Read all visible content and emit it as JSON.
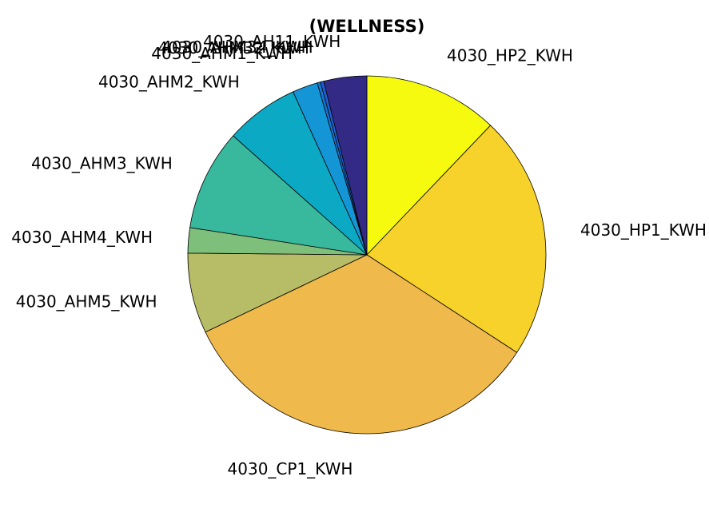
{
  "chart_data": {
    "type": "pie",
    "title": "(WELLNESS)",
    "start_angle_deg": 90,
    "direction": "clockwise",
    "slices": [
      {
        "label": "4030_HP2_KWH",
        "value": 12.2,
        "color": "#f5fa0f"
      },
      {
        "label": "4030_HP1_KWH",
        "value": 22.2,
        "color": "#f7d22a"
      },
      {
        "label": "4030_CP1_KWH",
        "value": 33.9,
        "color": "#f0b94b"
      },
      {
        "label": "4030_AHM5_KWH",
        "value": 7.3,
        "color": "#b7bc66"
      },
      {
        "label": "4030_AHM4_KWH",
        "value": 2.3,
        "color": "#7ebf7b"
      },
      {
        "label": "4030_AHM3_KWH",
        "value": 9.2,
        "color": "#38b89d"
      },
      {
        "label": "4030_AHM2_KWH",
        "value": 6.7,
        "color": "#0ba9c4"
      },
      {
        "label": "4030_AHM1_KWH",
        "value": 2.3,
        "color": "#1496d6"
      },
      {
        "label": "4030_AHM32_KWH",
        "value": 0.3,
        "color": "#1475d2"
      },
      {
        "label": "4030_AHM34_KWH",
        "value": 0.3,
        "color": "#1f60d0"
      },
      {
        "label": "4030_AH11_KWH",
        "value": 3.9,
        "color": "#332a86"
      }
    ]
  }
}
